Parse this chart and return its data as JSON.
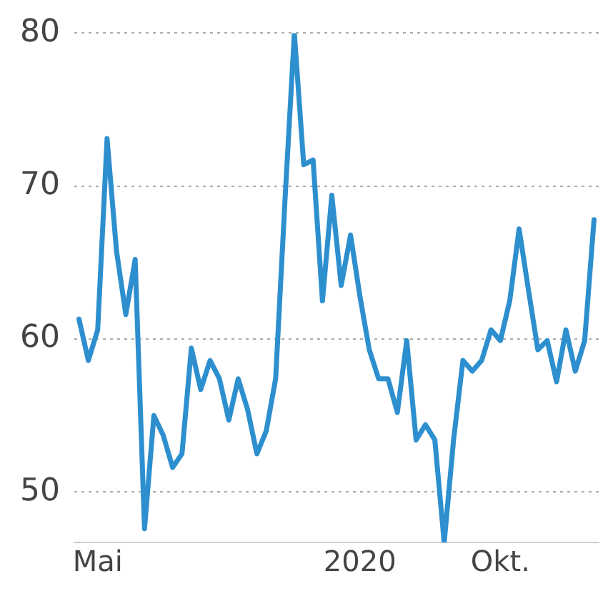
{
  "chart_data": {
    "type": "line",
    "categories": [
      null,
      null,
      "Mai",
      null,
      null,
      null,
      null,
      null,
      null,
      null,
      null,
      null,
      null,
      null,
      null,
      null,
      null,
      null,
      null,
      null,
      null,
      null,
      null,
      null,
      null,
      null,
      null,
      null,
      null,
      null,
      "2020",
      null,
      null,
      null,
      null,
      null,
      null,
      null,
      null,
      null,
      null,
      null,
      null,
      null,
      null,
      "Okt.",
      null,
      null,
      null,
      null,
      null,
      null,
      null,
      null,
      null,
      null
    ],
    "series": [
      {
        "color": "#2e8fcf",
        "values": [
          61.3,
          58.6,
          60.6,
          73.1,
          65.8,
          61.6,
          65.2,
          47.6,
          55,
          53.7,
          51.6,
          52.5,
          59.4,
          56.7,
          58.6,
          57.4,
          54.7,
          57.4,
          55.4,
          52.5,
          54,
          57.4,
          69.1,
          80,
          71.4,
          71.7,
          62.5,
          69.4,
          63.5,
          66.8,
          62.8,
          59.3,
          57.4,
          57.4,
          55.2,
          59.9,
          53.4,
          54.4,
          53.4,
          46.7,
          53.4,
          58.6,
          57.9,
          58.6,
          60.6,
          59.9,
          62.5,
          67.2,
          63.2,
          59.3,
          59.9,
          57.2,
          60.6,
          57.9,
          59.9,
          67.8
        ]
      }
    ],
    "ylim": [
      46.7,
      80
    ],
    "yticks": [
      50,
      60,
      70,
      80
    ],
    "grid": "y",
    "marker": "none",
    "line_style": "solid"
  }
}
